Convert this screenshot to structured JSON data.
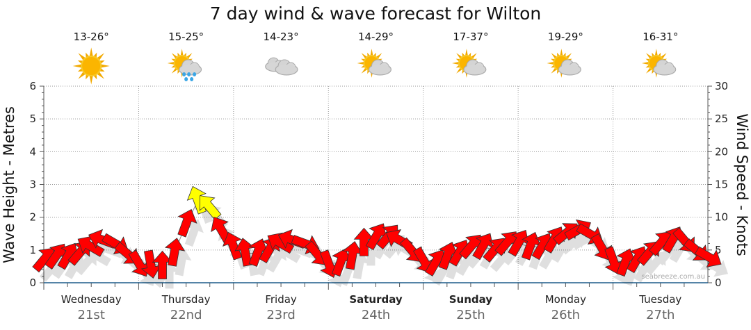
{
  "chart_data": {
    "type": "scatter",
    "title": "7 day wind & wave forecast for Wilton",
    "ylabel": "Wave Height - Metres",
    "y2label": "Wind Speed - Knots",
    "ylim": [
      0,
      6
    ],
    "y2lim": [
      0,
      30
    ],
    "yticks": [
      "0",
      "1",
      "2",
      "3",
      "4",
      "5",
      "6"
    ],
    "y2ticks": [
      "0",
      "5",
      "10",
      "15",
      "20",
      "25",
      "30"
    ],
    "grid": true,
    "days": [
      {
        "name": "Wednesday",
        "date": "21st",
        "temp": "13-26°",
        "icon": "sunny-icon",
        "bold": false
      },
      {
        "name": "Thursday",
        "date": "22nd",
        "temp": "15-25°",
        "icon": "sun-cloud-rain-icon",
        "bold": false
      },
      {
        "name": "Friday",
        "date": "23rd",
        "temp": "14-23°",
        "icon": "cloudy-icon",
        "bold": false
      },
      {
        "name": "Saturday",
        "date": "24th",
        "temp": "14-29°",
        "icon": "partly-cloudy-icon",
        "bold": true
      },
      {
        "name": "Sunday",
        "date": "25th",
        "temp": "17-37°",
        "icon": "partly-cloudy-icon",
        "bold": true
      },
      {
        "name": "Monday",
        "date": "26th",
        "temp": "19-29°",
        "icon": "partly-cloudy-icon",
        "bold": false
      },
      {
        "name": "Tuesday",
        "date": "27th",
        "temp": "16-31°",
        "icon": "partly-cloudy-icon",
        "bold": false
      }
    ],
    "interval_hours": 3,
    "wave_height_m": [
      0.7,
      0.8,
      0.8,
      0.9,
      1.1,
      1.3,
      1.2,
      0.9,
      0.6,
      0.6,
      0.5,
      0.9,
      1.8,
      2.5,
      2.3,
      1.6,
      1.1,
      0.9,
      0.9,
      1.0,
      1.2,
      1.3,
      1.2,
      0.9,
      0.6,
      0.6,
      0.8,
      1.2,
      1.4,
      1.4,
      1.3,
      1.0,
      0.7,
      0.6,
      0.8,
      0.9,
      1.1,
      1.1,
      1.0,
      1.2,
      1.2,
      1.1,
      1.1,
      1.3,
      1.5,
      1.6,
      1.5,
      1.1,
      0.7,
      0.6,
      0.7,
      0.9,
      1.2,
      1.3,
      1.3,
      1.0,
      0.8
    ],
    "wind_direction_deg": [
      40,
      35,
      30,
      40,
      300,
      290,
      120,
      130,
      150,
      170,
      0,
      10,
      20,
      340,
      320,
      330,
      340,
      350,
      20,
      30,
      300,
      290,
      110,
      140,
      160,
      20,
      10,
      0,
      30,
      40,
      300,
      140,
      150,
      30,
      20,
      30,
      40,
      30,
      40,
      40,
      30,
      20,
      30,
      30,
      50,
      60,
      120,
      150,
      160,
      20,
      30,
      40,
      40,
      30,
      140,
      130,
      120
    ],
    "wind_speed_kts": [
      9,
      9,
      9,
      9,
      10,
      10,
      10,
      9,
      9,
      9,
      9,
      10,
      12,
      16,
      15,
      12,
      10,
      10,
      10,
      10,
      10,
      10,
      10,
      9,
      9,
      9,
      9,
      10,
      11,
      11,
      10,
      9,
      9,
      9,
      9,
      10,
      10,
      10,
      10,
      10,
      10,
      10,
      10,
      10,
      11,
      11,
      10,
      9,
      9,
      9,
      9,
      10,
      10,
      10,
      10,
      9,
      9
    ],
    "colors": {
      "calm": "#ff0000",
      "moderate": "#ffff00"
    },
    "watermark": "seabreeze.com.au"
  }
}
